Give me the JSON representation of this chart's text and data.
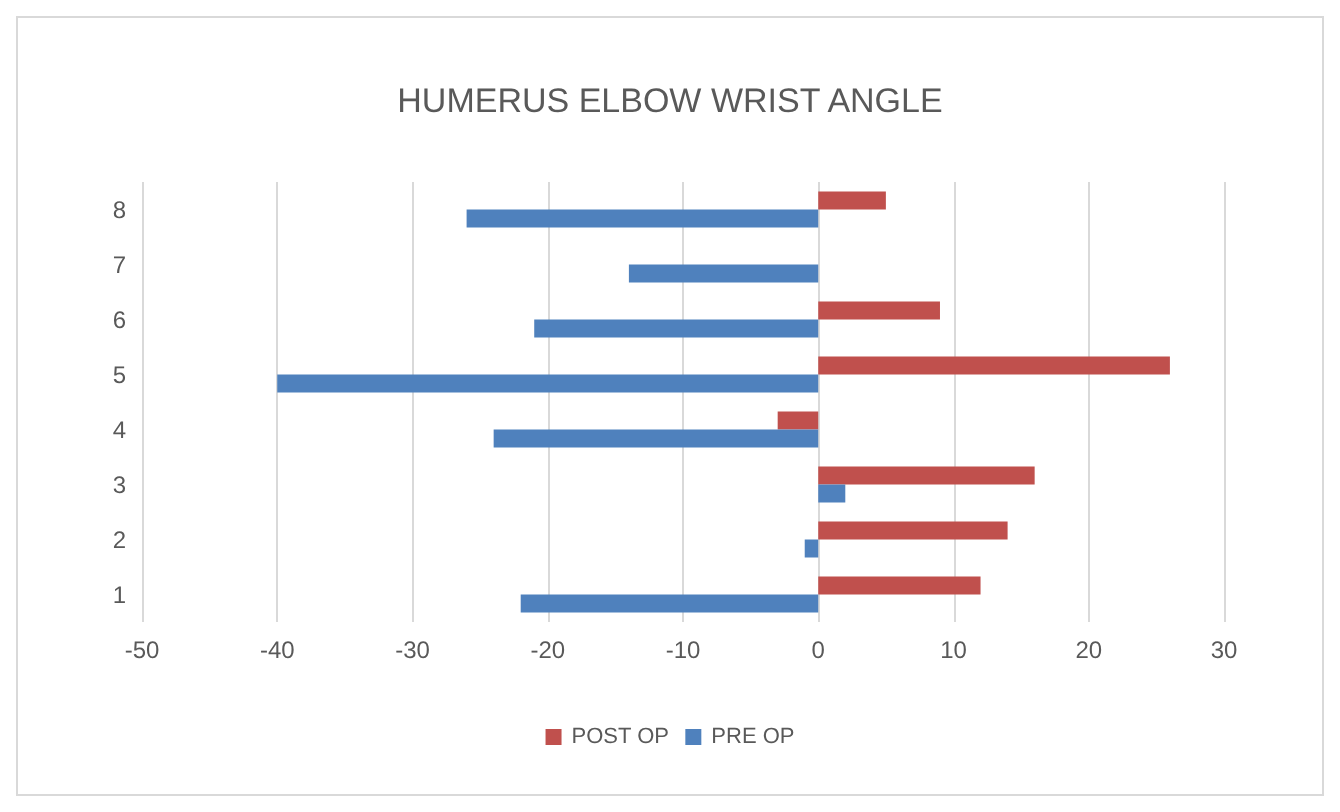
{
  "chart_data": {
    "type": "bar",
    "orientation": "horizontal",
    "title": "HUMERUS ELBOW WRIST ANGLE",
    "categories": [
      "8",
      "7",
      "6",
      "5",
      "4",
      "3",
      "2",
      "1"
    ],
    "series": [
      {
        "name": "POST OP",
        "color": "#c0504d",
        "values": [
          5,
          0,
          9,
          26,
          -3,
          16,
          14,
          12
        ]
      },
      {
        "name": "PRE OP",
        "color": "#4f81bd",
        "values": [
          -26,
          -14,
          -21,
          -40,
          -24,
          2,
          -1,
          -22
        ]
      }
    ],
    "xlim": [
      -50,
      30
    ],
    "xticks": [
      -50,
      -40,
      -30,
      -20,
      -10,
      0,
      10,
      20,
      30
    ],
    "grid": "x",
    "legend": "bottom"
  }
}
